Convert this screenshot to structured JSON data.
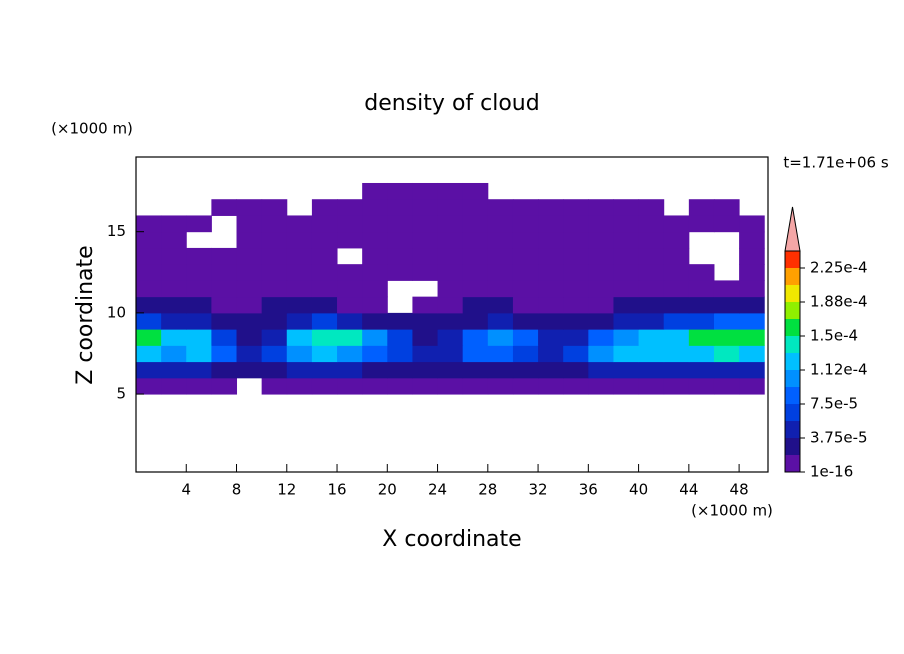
{
  "chart_data": {
    "type": "contour",
    "title": "density of cloud",
    "x_label": "X coordinate",
    "y_label": "Z coordinate",
    "x_unit": "(×1000 m)",
    "y_unit": "(×1000 m)",
    "time_label": "t=1.71e+06 s",
    "xlim": [
      0,
      50.3
    ],
    "ylim": [
      0.2,
      19.6
    ],
    "xticks": [
      4,
      8,
      12,
      16,
      20,
      24,
      28,
      32,
      36,
      40,
      44,
      48
    ],
    "yticks": [
      5,
      10,
      15
    ],
    "x": [
      1,
      3,
      5,
      7,
      9,
      11,
      13,
      15,
      17,
      19,
      21,
      23,
      25,
      27,
      29,
      31,
      33,
      35,
      37,
      39,
      41,
      43,
      45,
      47,
      49
    ],
    "y": [
      5.5,
      6.5,
      7.5,
      8.5,
      9.5,
      10.5,
      11.5,
      12.5,
      13.5,
      14.5,
      15.5,
      16.5,
      17.5
    ],
    "z": [
      [
        1e-05,
        1e-05,
        1e-05,
        1e-05,
        null,
        1e-05,
        1e-05,
        1e-05,
        1e-05,
        1e-05,
        1e-05,
        1e-05,
        1e-05,
        1e-05,
        1e-05,
        1e-05,
        1e-05,
        1e-05,
        1e-05,
        1e-05,
        1e-05,
        1e-05,
        1e-05,
        1e-05,
        1e-05
      ],
      [
        4e-05,
        4e-05,
        4e-05,
        3e-05,
        2e-05,
        3e-05,
        4e-05,
        4e-05,
        4e-05,
        3e-05,
        3e-05,
        2e-05,
        3e-05,
        3e-05,
        3e-05,
        3e-05,
        2e-05,
        3e-05,
        4e-05,
        4e-05,
        4e-05,
        4e-05,
        4e-05,
        4e-05,
        4e-05
      ],
      [
        0.00012,
        0.00011,
        0.00012,
        8e-05,
        4e-05,
        6e-05,
        0.0001,
        0.000115,
        0.00011,
        9e-05,
        6e-05,
        4e-05,
        5e-05,
        8e-05,
        9e-05,
        7e-05,
        5e-05,
        6e-05,
        0.0001,
        0.00012,
        0.000125,
        0.000115,
        0.00013,
        0.000135,
        0.00013
      ],
      [
        0.00016,
        0.00013,
        0.00012,
        7e-05,
        3e-05,
        5e-05,
        0.00012,
        0.000145,
        0.00014,
        0.00011,
        6e-05,
        3e-05,
        4e-05,
        9e-05,
        0.0001,
        8e-05,
        5e-05,
        4e-05,
        8e-05,
        0.00011,
        0.00012,
        0.00013,
        0.00015,
        0.00016,
        0.000155
      ],
      [
        7e-05,
        5e-05,
        4e-05,
        3e-05,
        2e-05,
        3e-05,
        5e-05,
        6e-05,
        5e-05,
        3e-05,
        2e-05,
        2e-05,
        2e-05,
        3e-05,
        4e-05,
        3e-05,
        2e-05,
        2e-05,
        3e-05,
        4e-05,
        5e-05,
        6e-05,
        7e-05,
        8e-05,
        8e-05
      ],
      [
        2e-05,
        2e-05,
        2e-05,
        1e-05,
        1e-05,
        2e-05,
        2e-05,
        2e-05,
        1e-05,
        1e-05,
        null,
        1e-05,
        1e-05,
        2e-05,
        2e-05,
        1e-05,
        1e-05,
        1e-05,
        1e-05,
        2e-05,
        2e-05,
        2e-05,
        2e-05,
        2e-05,
        2e-05
      ],
      [
        5e-06,
        5e-06,
        5e-06,
        5e-06,
        5e-06,
        5e-06,
        5e-06,
        5e-06,
        5e-06,
        5e-06,
        null,
        null,
        5e-06,
        5e-06,
        5e-06,
        5e-06,
        5e-06,
        5e-06,
        5e-06,
        5e-06,
        5e-06,
        5e-06,
        5e-06,
        5e-06,
        5e-06
      ],
      [
        1e-06,
        1e-06,
        1e-06,
        1e-06,
        1e-06,
        1e-06,
        1e-06,
        1e-06,
        1e-06,
        1e-06,
        1e-06,
        1e-06,
        1e-06,
        1e-06,
        1e-06,
        1e-06,
        1e-06,
        1e-06,
        1e-06,
        1e-06,
        1e-06,
        1e-06,
        1e-06,
        null,
        1e-06
      ],
      [
        1e-06,
        1e-06,
        1e-06,
        1e-06,
        1e-06,
        1e-06,
        1e-06,
        1e-06,
        null,
        1e-06,
        1e-06,
        1e-06,
        1e-06,
        1e-06,
        1e-06,
        1e-06,
        1e-06,
        1e-06,
        1e-06,
        1e-06,
        1e-06,
        1e-06,
        null,
        null,
        1e-06
      ],
      [
        1e-06,
        1e-06,
        null,
        null,
        1e-06,
        1e-06,
        1e-06,
        1e-06,
        1e-06,
        1e-06,
        1e-06,
        1e-06,
        1e-06,
        1e-06,
        1e-06,
        1e-06,
        1e-06,
        1e-06,
        1e-06,
        1e-06,
        1e-06,
        1e-06,
        null,
        null,
        1e-06
      ],
      [
        1e-07,
        1e-07,
        1e-07,
        null,
        1e-07,
        1e-07,
        1e-07,
        1e-07,
        1e-07,
        1e-07,
        1e-07,
        1e-07,
        1e-07,
        1e-07,
        1e-07,
        1e-07,
        1e-07,
        1e-07,
        1e-07,
        1e-07,
        1e-07,
        1e-07,
        1e-07,
        1e-07,
        1e-07
      ],
      [
        null,
        null,
        null,
        1e-07,
        1e-07,
        1e-07,
        null,
        1e-07,
        1e-07,
        1e-07,
        1e-07,
        1e-07,
        1e-07,
        1e-07,
        1e-07,
        1e-07,
        1e-07,
        1e-07,
        1e-07,
        1e-07,
        1e-07,
        null,
        1e-07,
        1e-07,
        null
      ],
      [
        null,
        null,
        null,
        null,
        null,
        null,
        null,
        null,
        null,
        1e-07,
        1e-07,
        1e-07,
        1e-07,
        1e-07,
        null,
        null,
        null,
        null,
        null,
        null,
        null,
        null,
        null,
        null,
        null
      ]
    ],
    "colorbar": {
      "levels": [
        1e-16,
        1.875e-05,
        3.75e-05,
        5.625e-05,
        7.5e-05,
        9.375e-05,
        0.0001125,
        0.00013125,
        0.00015,
        0.00016875,
        0.0001875,
        0.00020625,
        0.000225,
        0.00024375
      ],
      "colors": [
        "#5b10a5",
        "#20108a",
        "#1020b0",
        "#0040e0",
        "#0060ff",
        "#0090ff",
        "#00c0ff",
        "#00e8c0",
        "#00e040",
        "#90f000",
        "#f0e800",
        "#ffa000",
        "#ff3000"
      ],
      "extend_color": "#f4a6a6",
      "ticks": [
        1e-16,
        {
          "value": 3.75e-05,
          "label": "3.75e-5"
        },
        {
          "value": 7.5e-05,
          "label": "7.5e-5"
        },
        {
          "value": 0.0001125,
          "label": "1.12e-4"
        },
        {
          "value": 0.00015,
          "label": "1.5e-4"
        },
        {
          "value": 0.0001875,
          "label": "1.88e-4"
        },
        {
          "value": 0.000225,
          "label": "2.25e-4"
        }
      ]
    }
  }
}
